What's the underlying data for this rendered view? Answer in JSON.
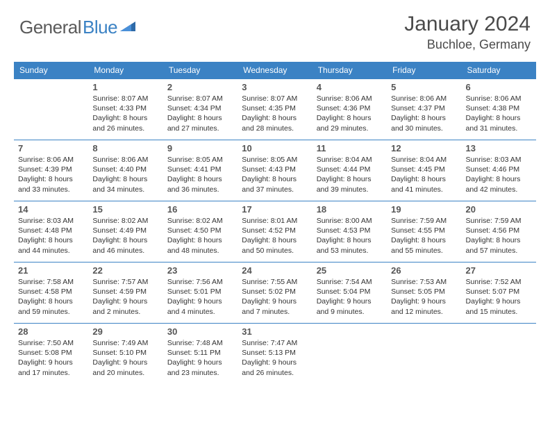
{
  "logo": {
    "text1": "General",
    "text2": "Blue"
  },
  "title": "January 2024",
  "location": "Buchloe, Germany",
  "colors": {
    "header_bg": "#3b82c4",
    "border": "#3b82c4",
    "text": "#333333",
    "title_text": "#4a4a4a"
  },
  "day_headers": [
    "Sunday",
    "Monday",
    "Tuesday",
    "Wednesday",
    "Thursday",
    "Friday",
    "Saturday"
  ],
  "weeks": [
    [
      {
        "n": "",
        "sr": "",
        "ss": "",
        "dl": ""
      },
      {
        "n": "1",
        "sr": "Sunrise: 8:07 AM",
        "ss": "Sunset: 4:33 PM",
        "dl": "Daylight: 8 hours and 26 minutes."
      },
      {
        "n": "2",
        "sr": "Sunrise: 8:07 AM",
        "ss": "Sunset: 4:34 PM",
        "dl": "Daylight: 8 hours and 27 minutes."
      },
      {
        "n": "3",
        "sr": "Sunrise: 8:07 AM",
        "ss": "Sunset: 4:35 PM",
        "dl": "Daylight: 8 hours and 28 minutes."
      },
      {
        "n": "4",
        "sr": "Sunrise: 8:06 AM",
        "ss": "Sunset: 4:36 PM",
        "dl": "Daylight: 8 hours and 29 minutes."
      },
      {
        "n": "5",
        "sr": "Sunrise: 8:06 AM",
        "ss": "Sunset: 4:37 PM",
        "dl": "Daylight: 8 hours and 30 minutes."
      },
      {
        "n": "6",
        "sr": "Sunrise: 8:06 AM",
        "ss": "Sunset: 4:38 PM",
        "dl": "Daylight: 8 hours and 31 minutes."
      }
    ],
    [
      {
        "n": "7",
        "sr": "Sunrise: 8:06 AM",
        "ss": "Sunset: 4:39 PM",
        "dl": "Daylight: 8 hours and 33 minutes."
      },
      {
        "n": "8",
        "sr": "Sunrise: 8:06 AM",
        "ss": "Sunset: 4:40 PM",
        "dl": "Daylight: 8 hours and 34 minutes."
      },
      {
        "n": "9",
        "sr": "Sunrise: 8:05 AM",
        "ss": "Sunset: 4:41 PM",
        "dl": "Daylight: 8 hours and 36 minutes."
      },
      {
        "n": "10",
        "sr": "Sunrise: 8:05 AM",
        "ss": "Sunset: 4:43 PM",
        "dl": "Daylight: 8 hours and 37 minutes."
      },
      {
        "n": "11",
        "sr": "Sunrise: 8:04 AM",
        "ss": "Sunset: 4:44 PM",
        "dl": "Daylight: 8 hours and 39 minutes."
      },
      {
        "n": "12",
        "sr": "Sunrise: 8:04 AM",
        "ss": "Sunset: 4:45 PM",
        "dl": "Daylight: 8 hours and 41 minutes."
      },
      {
        "n": "13",
        "sr": "Sunrise: 8:03 AM",
        "ss": "Sunset: 4:46 PM",
        "dl": "Daylight: 8 hours and 42 minutes."
      }
    ],
    [
      {
        "n": "14",
        "sr": "Sunrise: 8:03 AM",
        "ss": "Sunset: 4:48 PM",
        "dl": "Daylight: 8 hours and 44 minutes."
      },
      {
        "n": "15",
        "sr": "Sunrise: 8:02 AM",
        "ss": "Sunset: 4:49 PM",
        "dl": "Daylight: 8 hours and 46 minutes."
      },
      {
        "n": "16",
        "sr": "Sunrise: 8:02 AM",
        "ss": "Sunset: 4:50 PM",
        "dl": "Daylight: 8 hours and 48 minutes."
      },
      {
        "n": "17",
        "sr": "Sunrise: 8:01 AM",
        "ss": "Sunset: 4:52 PM",
        "dl": "Daylight: 8 hours and 50 minutes."
      },
      {
        "n": "18",
        "sr": "Sunrise: 8:00 AM",
        "ss": "Sunset: 4:53 PM",
        "dl": "Daylight: 8 hours and 53 minutes."
      },
      {
        "n": "19",
        "sr": "Sunrise: 7:59 AM",
        "ss": "Sunset: 4:55 PM",
        "dl": "Daylight: 8 hours and 55 minutes."
      },
      {
        "n": "20",
        "sr": "Sunrise: 7:59 AM",
        "ss": "Sunset: 4:56 PM",
        "dl": "Daylight: 8 hours and 57 minutes."
      }
    ],
    [
      {
        "n": "21",
        "sr": "Sunrise: 7:58 AM",
        "ss": "Sunset: 4:58 PM",
        "dl": "Daylight: 8 hours and 59 minutes."
      },
      {
        "n": "22",
        "sr": "Sunrise: 7:57 AM",
        "ss": "Sunset: 4:59 PM",
        "dl": "Daylight: 9 hours and 2 minutes."
      },
      {
        "n": "23",
        "sr": "Sunrise: 7:56 AM",
        "ss": "Sunset: 5:01 PM",
        "dl": "Daylight: 9 hours and 4 minutes."
      },
      {
        "n": "24",
        "sr": "Sunrise: 7:55 AM",
        "ss": "Sunset: 5:02 PM",
        "dl": "Daylight: 9 hours and 7 minutes."
      },
      {
        "n": "25",
        "sr": "Sunrise: 7:54 AM",
        "ss": "Sunset: 5:04 PM",
        "dl": "Daylight: 9 hours and 9 minutes."
      },
      {
        "n": "26",
        "sr": "Sunrise: 7:53 AM",
        "ss": "Sunset: 5:05 PM",
        "dl": "Daylight: 9 hours and 12 minutes."
      },
      {
        "n": "27",
        "sr": "Sunrise: 7:52 AM",
        "ss": "Sunset: 5:07 PM",
        "dl": "Daylight: 9 hours and 15 minutes."
      }
    ],
    [
      {
        "n": "28",
        "sr": "Sunrise: 7:50 AM",
        "ss": "Sunset: 5:08 PM",
        "dl": "Daylight: 9 hours and 17 minutes."
      },
      {
        "n": "29",
        "sr": "Sunrise: 7:49 AM",
        "ss": "Sunset: 5:10 PM",
        "dl": "Daylight: 9 hours and 20 minutes."
      },
      {
        "n": "30",
        "sr": "Sunrise: 7:48 AM",
        "ss": "Sunset: 5:11 PM",
        "dl": "Daylight: 9 hours and 23 minutes."
      },
      {
        "n": "31",
        "sr": "Sunrise: 7:47 AM",
        "ss": "Sunset: 5:13 PM",
        "dl": "Daylight: 9 hours and 26 minutes."
      },
      {
        "n": "",
        "sr": "",
        "ss": "",
        "dl": ""
      },
      {
        "n": "",
        "sr": "",
        "ss": "",
        "dl": ""
      },
      {
        "n": "",
        "sr": "",
        "ss": "",
        "dl": ""
      }
    ]
  ]
}
